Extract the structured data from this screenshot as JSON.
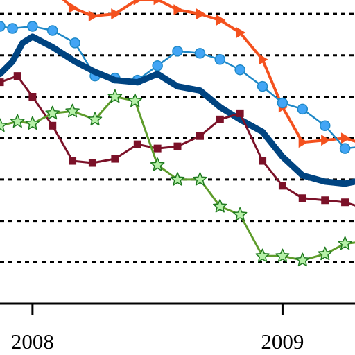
{
  "chart_data": {
    "type": "line",
    "title": "",
    "xlabel": "",
    "ylabel": "",
    "x_tick_labels": [
      {
        "label": "2008",
        "x": 2008.0
      },
      {
        "label": "2009",
        "x": 2009.0
      }
    ],
    "xlim": [
      2007.87,
      2009.29
    ],
    "ylim": [
      0,
      8
    ],
    "grid": {
      "y_dotted": true
    },
    "gridlines_y": [
      1,
      2,
      3,
      4,
      5,
      6,
      7,
      8
    ],
    "legend": "none",
    "series": [
      {
        "id": "orange-triangle",
        "color": "#F4511E",
        "marker": "triangle-right",
        "line_width": 4,
        "x": [
          2007.975,
          2008.07,
          2008.16,
          2008.24,
          2008.33,
          2008.42,
          2008.5,
          2008.58,
          2008.67,
          2008.75,
          2008.83,
          2008.92,
          2009.0,
          2009.08,
          2009.17,
          2009.25,
          2009.33
        ],
        "y": [
          8.2,
          7.65,
          7.15,
          6.95,
          7.0,
          7.35,
          7.35,
          7.1,
          7.0,
          6.85,
          6.55,
          5.9,
          4.75,
          3.9,
          3.95,
          4.0,
          3.85
        ]
      },
      {
        "id": "blue-circle",
        "color": "#1E88C7",
        "marker_fill": "#42A5F5",
        "marker": "circle",
        "line_width": 2.5,
        "x": [
          2007.87,
          2007.92,
          2008.0,
          2008.08,
          2008.17,
          2008.25,
          2008.33,
          2008.42,
          2008.5,
          2008.58,
          2008.67,
          2008.75,
          2008.83,
          2008.92,
          2009.0,
          2009.08,
          2009.17,
          2009.25,
          2009.33
        ],
        "y": [
          6.7,
          6.65,
          6.7,
          6.6,
          6.3,
          5.5,
          5.45,
          5.4,
          5.75,
          6.1,
          6.05,
          5.9,
          5.65,
          5.25,
          4.85,
          4.7,
          4.3,
          3.75,
          3.8
        ]
      },
      {
        "id": "navy-thick",
        "color": "#004481",
        "marker": "none",
        "line_width": 9,
        "x": [
          2007.87,
          2007.92,
          2007.96,
          2008.0,
          2008.08,
          2008.17,
          2008.25,
          2008.33,
          2008.42,
          2008.5,
          2008.58,
          2008.67,
          2008.75,
          2008.83,
          2008.92,
          2009.0,
          2009.08,
          2009.17,
          2009.25,
          2009.33
        ],
        "y": [
          5.55,
          5.85,
          6.3,
          6.45,
          6.2,
          5.85,
          5.6,
          5.4,
          5.35,
          5.55,
          5.25,
          5.15,
          4.75,
          4.45,
          4.15,
          3.55,
          3.1,
          2.95,
          2.9,
          3.0
        ]
      },
      {
        "id": "maroon-square",
        "color": "#7B1128",
        "marker": "square",
        "line_width": 3,
        "x": [
          2007.87,
          2007.94,
          2008.0,
          2008.08,
          2008.16,
          2008.24,
          2008.33,
          2008.42,
          2008.5,
          2008.58,
          2008.67,
          2008.75,
          2008.83,
          2008.92,
          2009.0,
          2009.08,
          2009.17,
          2009.25,
          2009.33
        ],
        "y": [
          5.35,
          5.5,
          5.0,
          4.3,
          3.45,
          3.4,
          3.5,
          3.85,
          3.75,
          3.8,
          4.05,
          4.45,
          4.6,
          3.45,
          2.85,
          2.55,
          2.5,
          2.45,
          2.3
        ]
      },
      {
        "id": "green-star",
        "color": "#5E9C2B",
        "marker_fill": "#B6F0A8",
        "marker_stroke": "#1F7A1F",
        "marker": "star",
        "line_width": 3,
        "x": [
          2007.87,
          2007.94,
          2008.0,
          2008.08,
          2008.16,
          2008.25,
          2008.33,
          2008.41,
          2008.5,
          2008.58,
          2008.67,
          2008.75,
          2008.83,
          2008.92,
          2009.0,
          2009.08,
          2009.17,
          2009.25,
          2009.33
        ],
        "y": [
          4.3,
          4.4,
          4.35,
          4.6,
          4.65,
          4.45,
          5.0,
          4.9,
          3.35,
          3.0,
          3.0,
          2.35,
          2.15,
          1.15,
          1.15,
          1.05,
          1.2,
          1.45,
          1.5
        ]
      }
    ]
  }
}
